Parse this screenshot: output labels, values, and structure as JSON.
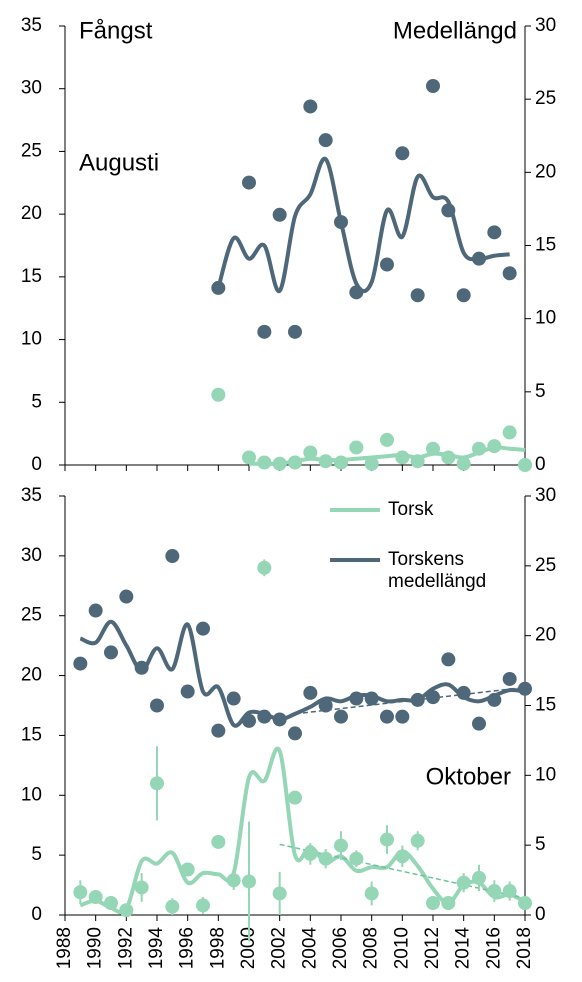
{
  "chart_data": [
    {
      "type": "line",
      "y_label": "Fångst",
      "y2_label": "Medellängd",
      "annotation": "Augusti",
      "xlim": [
        1988,
        2018
      ],
      "xticks": [
        1988,
        1990,
        1992,
        1994,
        1996,
        1998,
        2000,
        2002,
        2004,
        2006,
        2008,
        2010,
        2012,
        2014,
        2016,
        2018
      ],
      "ylim": [
        0,
        35
      ],
      "yticks": [
        0,
        5,
        10,
        15,
        20,
        25,
        30,
        35
      ],
      "y2lim": [
        0,
        30
      ],
      "y2ticks": [
        0,
        5,
        10,
        15,
        20,
        25,
        30
      ],
      "series": [
        {
          "mode": "markers",
          "color": "#4f6879",
          "axis": "y2",
          "x": [
            1998,
            2000,
            2001,
            2002,
            2003,
            2004,
            2005,
            2006,
            2007,
            2009,
            2010,
            2011,
            2012,
            2013,
            2014,
            2015,
            2016,
            2017
          ],
          "values": [
            12.1,
            19.3,
            9.1,
            17.1,
            9.1,
            24.5,
            22.2,
            16.6,
            11.8,
            13.7,
            21.3,
            11.6,
            25.9,
            17.4,
            11.6,
            14.1,
            15.9,
            13.1
          ]
        },
        {
          "mode": "lines",
          "color": "#4f6879",
          "axis": "y2",
          "x": [
            1998,
            1999,
            2000,
            2001,
            2002,
            2003,
            2004,
            2005,
            2006,
            2007,
            2008,
            2009,
            2010,
            2011,
            2012,
            2013,
            2014,
            2015,
            2016,
            2017
          ],
          "values": [
            12.1,
            15.5,
            14.1,
            15.0,
            11.9,
            17.0,
            18.5,
            20.9,
            16.6,
            12.4,
            12.5,
            17.4,
            15.6,
            19.7,
            18.3,
            18.0,
            14.5,
            14.1,
            14.3,
            14.4
          ]
        },
        {
          "mode": "markers",
          "color": "#94d6b5",
          "x": [
            1998,
            2000,
            2001,
            2002,
            2003,
            2004,
            2005,
            2006,
            2007,
            2008,
            2009,
            2010,
            2011,
            2012,
            2013,
            2014,
            2015,
            2016,
            2017,
            2018
          ],
          "values": [
            5.6,
            0.6,
            0.2,
            0.1,
            0.2,
            1.0,
            0.3,
            0.2,
            1.4,
            0.1,
            2.0,
            0.6,
            0.3,
            1.3,
            0.6,
            0.1,
            1.3,
            1.5,
            2.6,
            0
          ]
        },
        {
          "mode": "lines",
          "color": "#94d6b5",
          "x": [
            2000,
            2001,
            2002,
            2003,
            2004,
            2005,
            2006,
            2007,
            2008,
            2009,
            2010,
            2011,
            2012,
            2013,
            2014,
            2015,
            2016,
            2017,
            2018
          ],
          "values": [
            0.1,
            0.1,
            0.1,
            0.3,
            0.5,
            0.4,
            0.4,
            0.5,
            0.6,
            0.7,
            0.8,
            0.6,
            0.9,
            0.8,
            0.6,
            1.0,
            1.4,
            1.3,
            1.2
          ]
        }
      ]
    },
    {
      "type": "line",
      "annotation": "Oktober",
      "legend": "top-right",
      "xlim": [
        1988,
        2018
      ],
      "xticks": [
        1988,
        1990,
        1992,
        1994,
        1996,
        1998,
        2000,
        2002,
        2004,
        2006,
        2008,
        2010,
        2012,
        2014,
        2016,
        2018
      ],
      "ylim": [
        0,
        35
      ],
      "yticks": [
        0,
        5,
        10,
        15,
        20,
        25,
        30,
        35
      ],
      "y2lim": [
        0,
        30
      ],
      "y2ticks": [
        0,
        5,
        10,
        15,
        20,
        25,
        30
      ],
      "series": [
        {
          "mode": "markers",
          "color": "#4f6879",
          "axis": "y2",
          "x": [
            1989,
            1990,
            1991,
            1992,
            1993,
            1994,
            1995,
            1996,
            1997,
            1998,
            1999,
            2000,
            2001,
            2002,
            2003,
            2004,
            2005,
            2006,
            2007,
            2008,
            2009,
            2010,
            2011,
            2012,
            2013,
            2014,
            2015,
            2016,
            2017,
            2018
          ],
          "values": [
            18.0,
            21.8,
            18.8,
            22.8,
            17.7,
            15.0,
            25.7,
            16.0,
            20.5,
            13.2,
            15.5,
            13.9,
            14.2,
            14.0,
            13.0,
            15.9,
            15.0,
            14.2,
            15.5,
            15.5,
            14.2,
            14.2,
            15.4,
            15.6,
            18.3,
            15.9,
            13.7,
            15.4,
            16.9,
            16.2
          ]
        },
        {
          "mode": "markers",
          "color": "#94d6b5",
          "x": [
            1989,
            1990,
            1991,
            1992,
            1993,
            1994,
            1995,
            1996,
            1997,
            1998,
            1999,
            2000,
            2001,
            2002,
            2003,
            2004,
            2005,
            2006,
            2007,
            2008,
            2009,
            2010,
            2011,
            2012,
            2013,
            2014,
            2015,
            2016,
            2017,
            2018
          ],
          "values": [
            1.9,
            1.5,
            1.0,
            0.4,
            2.3,
            11.0,
            0.7,
            3.8,
            0.8,
            6.1,
            2.9,
            2.8,
            29.0,
            1.8,
            9.8,
            5.1,
            4.7,
            5.8,
            4.7,
            1.8,
            6.3,
            4.9,
            6.2,
            1.0,
            1.0,
            2.7,
            3.1,
            2.0,
            2.0,
            1.0
          ],
          "errors": [
            1.0,
            0.5,
            0.5,
            0.5,
            1.2,
            3.1,
            0.7,
            0.5,
            0.7,
            0.5,
            0.8,
            5.0,
            0.7,
            1.8,
            0.5,
            0.9,
            0.8,
            1.2,
            0.7,
            1.0,
            1.2,
            0.9,
            0.8,
            0.5,
            0.5,
            0.8,
            1.1,
            0.9,
            0.8,
            0.5
          ]
        },
        {
          "name": "Torsk",
          "mode": "lines",
          "color": "#94d6b5",
          "x": [
            1989,
            1990,
            1991,
            1992,
            1993,
            1994,
            1995,
            1996,
            1997,
            1998,
            1999,
            2000,
            2001,
            2002,
            2003,
            2004,
            2005,
            2006,
            2007,
            2008,
            2009,
            2010,
            2011,
            2012,
            2013,
            2014,
            2015,
            2016,
            2017,
            2018
          ],
          "values": [
            0.8,
            1.2,
            0.6,
            0.5,
            4.5,
            4.3,
            5.2,
            2.7,
            3.5,
            3.4,
            3.5,
            11.5,
            11.2,
            13.7,
            5.0,
            5.7,
            4.4,
            4.9,
            3.7,
            4.0,
            4.0,
            5.3,
            4.1,
            2.2,
            1.0,
            2.5,
            2.7,
            1.5,
            1.7,
            1.1
          ]
        },
        {
          "name": "Torskens medellängd",
          "mode": "lines",
          "color": "#4f6879",
          "axis": "y2",
          "x": [
            1989,
            1990,
            1991,
            1992,
            1993,
            1994,
            1995,
            1996,
            1997,
            1998,
            1999,
            2000,
            2001,
            2002,
            2003,
            2004,
            2005,
            2006,
            2007,
            2008,
            2009,
            2010,
            2011,
            2012,
            2013,
            2014,
            2015,
            2016,
            2017,
            2018
          ],
          "values": [
            19.8,
            19.5,
            21.0,
            19.3,
            17.5,
            19.1,
            17.6,
            20.8,
            16.0,
            16.3,
            13.6,
            14.5,
            14.4,
            14.0,
            14.4,
            14.9,
            15.5,
            15.3,
            15.7,
            15.7,
            15.3,
            15.4,
            15.4,
            16.2,
            16.5,
            15.6,
            15.3,
            15.7,
            16.1,
            16.0
          ]
        },
        {
          "mode": "trend",
          "color": "#4f6879",
          "axis": "y2",
          "x": [
            2003,
            2018
          ],
          "values": [
            14.4,
            16.3
          ]
        },
        {
          "mode": "trend",
          "color": "#6cc49b",
          "x": [
            2002,
            2018
          ],
          "values": [
            5.9,
            1.4
          ]
        }
      ]
    }
  ]
}
